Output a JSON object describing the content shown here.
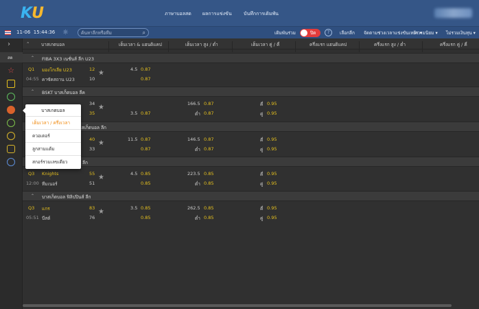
{
  "header": {
    "logo_main": "K",
    "logo_accent": "U",
    "nav": [
      "ภาษาบอลสด",
      "ผลการแข่งขัน",
      "บันทึกการเดิมพัน"
    ]
  },
  "subbar": {
    "date": "11-06",
    "time": "15:44:36",
    "search_placeholder": "ค้นหาลีกหรือทีม",
    "parlay_label": "เดิมพันร่วม",
    "toggle_label": "ปิด",
    "help": "?",
    "select_league": "เลือกลีก",
    "sort_label": "จัดตามช่วงเวลาแข่งขันเหย้า",
    "popular_label": "ความนิยม",
    "market_label": "ไม่รวมเงินทุน"
  },
  "sidebar": {
    "selected_label": "สด",
    "icons": [
      "star-icon",
      "tv-icon",
      "soccer-icon",
      "basketball-icon",
      "tennis-icon",
      "volleyball-icon",
      "microphone-icon",
      "cycling-icon"
    ]
  },
  "columns": {
    "sport": "บาสเกตบอล",
    "c1": "เต็มเวลา & แฮนดิแคป",
    "c2": "เต็มเวลา สูง / ต่ำ",
    "c3": "เต็มเวลา คู่ / คี่",
    "c4": "ครึ่งแรก แฮนดิแคป",
    "c5": "ครึ่งแรก สูง / ต่ำ",
    "c6": "ครึ่งแรก คู่ / คี่"
  },
  "leagues": [
    {
      "name": "FIBA 3X3 เนชั่นส์ ลีก U23",
      "period": "Q1",
      "clock": "04:55",
      "team1": "มองโกเลีย U23",
      "team2": "คาซัคสถาน U23",
      "score1": "12",
      "score2": "10",
      "hdp_line": "4.5",
      "hdp_odds1": "0.87",
      "hdp_odds2": "0.87",
      "ou_line": "",
      "ou_odds1": "",
      "ou_odds2": "",
      "ou_over": "",
      "ou_under": "",
      "oe_odd": "",
      "oe_even": "",
      "oe_odds1": "",
      "oe_odds2": ""
    },
    {
      "name": "BSKT บาสเก็ตบอล ลีค",
      "period": "",
      "clock": "",
      "team1": "",
      "team2": "",
      "score1": "34",
      "score2": "35",
      "hdp_line": "",
      "hdp_line2": "3.5",
      "hdp_odds1": "0.87",
      "hdp_odds2": "0.87",
      "ou_line": "166.5",
      "ou_odds1": "0.87",
      "ou_odds2": "0.87",
      "ou_over": "",
      "ou_under": "ต่ำ",
      "oe_odd": "คี่",
      "oe_even": "คู่",
      "oe_odds1": "0.95",
      "oe_odds2": "0.95"
    },
    {
      "name": "าสเก็ตบอล ลีก",
      "period": "",
      "clock": "",
      "team1": "",
      "team2": "",
      "score1": "40",
      "score2": "33",
      "hdp_line": "11.5",
      "hdp_odds1": "0.87",
      "hdp_odds2": "0.87",
      "ou_line": "146.5",
      "ou_odds1": "0.87",
      "ou_odds2": "0.87",
      "ou_over": "",
      "ou_under": "ต่ำ",
      "oe_odd": "คี่",
      "oe_even": "คู่",
      "oe_odds1": "0.95",
      "oe_odds2": "0.95"
    },
    {
      "name": "ลีก",
      "period": "Q3",
      "clock": "12:00",
      "team1": "Knights",
      "team2": "ทีมเนอร์",
      "score1": "55",
      "score2": "51",
      "hdp_line": "4.5",
      "hdp_odds1": "0.85",
      "hdp_odds2": "0.85",
      "ou_line": "223.5",
      "ou_odds1": "0.85",
      "ou_odds2": "0.85",
      "ou_over": "",
      "ou_under": "ต่ำ",
      "oe_odd": "คี่",
      "oe_even": "คู่",
      "oe_odds1": "0.95",
      "oe_odds2": "0.95"
    },
    {
      "name": "บาสเก็ตบอล ฟิลิปปินส์ ลีก",
      "period": "Q3",
      "clock": "05:51",
      "team1": "แกร",
      "team2": "บีสต์",
      "score1": "83",
      "score2": "76",
      "hdp_line": "3.5",
      "hdp_odds1": "0.85",
      "hdp_odds2": "0.85",
      "ou_line": "262.5",
      "ou_odds1": "0.85",
      "ou_odds2": "0.85",
      "ou_over": "",
      "ou_under": "ต่ำ",
      "oe_odd": "คี่",
      "oe_even": "คู่",
      "oe_odds1": "0.95",
      "oe_odds2": "0.95"
    }
  ],
  "dropdown": {
    "title": "บาสเกตบอล",
    "items": [
      "เต็มเวลา / ครึ่งเวลา",
      "ควอเตอร์",
      "ลูกสามแต้ม",
      "สกอร์รวมเลขเดียว"
    ]
  },
  "colors": {
    "header_bg": "#355687",
    "accent_yellow": "#e8c21e",
    "toggle_red": "#e43b3b",
    "active_orange": "#f08a10"
  }
}
